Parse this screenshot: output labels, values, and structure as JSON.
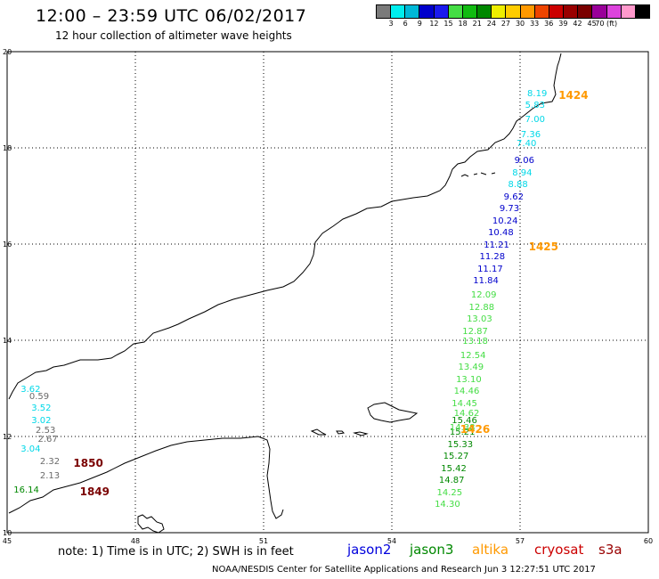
{
  "header": {
    "title": "12:00 – 23:59 UTC 06/02/2017",
    "subtitle": "12 hour collection of altimeter wave heights"
  },
  "color_scale": {
    "colors": [
      "#7a7a7a",
      "#00eeee",
      "#00b8d8",
      "#0000cc",
      "#1a1aee",
      "#44dd44",
      "#11bb11",
      "#008800",
      "#eeee00",
      "#ffcc00",
      "#ff9900",
      "#ee4400",
      "#cc0000",
      "#990000",
      "#7a0000",
      "#990099",
      "#dd44dd",
      "#ff99cc",
      "#000000"
    ],
    "labels": [
      "3",
      "6",
      "9",
      "12",
      "15",
      "18",
      "21",
      "24",
      "27",
      "30",
      "33",
      "36",
      "39",
      "42",
      "45",
      "70 (ft)"
    ]
  },
  "axes": {
    "lat_labels": [
      "20",
      "18",
      "16",
      "14",
      "12",
      "10"
    ],
    "lon_labels": [
      "45",
      "48",
      "51",
      "54",
      "57",
      "60"
    ]
  },
  "measurements": {
    "altika": [
      {
        "v": "3.62",
        "lon": 45.55,
        "lat": 12.95
      },
      {
        "v": "3.52",
        "lon": 45.8,
        "lat": 12.55
      },
      {
        "v": "3.02",
        "lon": 45.8,
        "lat": 12.3
      },
      {
        "v": "3.04",
        "lon": 45.55,
        "lat": 11.7
      },
      {
        "v": "8.19",
        "lon": 57.4,
        "lat": 19.1
      },
      {
        "v": "5.83",
        "lon": 57.35,
        "lat": 18.85
      },
      {
        "v": "7.00",
        "lon": 57.35,
        "lat": 18.55
      },
      {
        "v": "7.36",
        "lon": 57.25,
        "lat": 18.25
      },
      {
        "v": "7.40",
        "lon": 57.15,
        "lat": 18.05
      },
      {
        "v": "8.94",
        "lon": 57.05,
        "lat": 17.45
      },
      {
        "v": "8.88",
        "lon": 56.95,
        "lat": 17.2
      }
    ],
    "jason2": [
      {
        "v": "9.06",
        "lon": 57.1,
        "lat": 17.7
      },
      {
        "v": "9.62",
        "lon": 56.85,
        "lat": 16.95
      },
      {
        "v": "9.73",
        "lon": 56.75,
        "lat": 16.7
      },
      {
        "v": "10.24",
        "lon": 56.65,
        "lat": 16.45
      },
      {
        "v": "10.48",
        "lon": 56.55,
        "lat": 16.2
      },
      {
        "v": "11.21",
        "lon": 56.45,
        "lat": 15.95
      },
      {
        "v": "11.28",
        "lon": 56.35,
        "lat": 15.7
      },
      {
        "v": "11.17",
        "lon": 56.3,
        "lat": 15.45
      },
      {
        "v": "11.84",
        "lon": 56.2,
        "lat": 15.2
      }
    ],
    "jason3": [
      {
        "v": "16.14",
        "lon": 45.45,
        "lat": 10.85
      },
      {
        "v": "15.46",
        "lon": 55.7,
        "lat": 12.3
      },
      {
        "v": "15.21",
        "lon": 55.65,
        "lat": 12.05
      },
      {
        "v": "15.33",
        "lon": 55.6,
        "lat": 11.8
      },
      {
        "v": "15.27",
        "lon": 55.5,
        "lat": 11.55
      },
      {
        "v": "15.42",
        "lon": 55.45,
        "lat": 11.3
      },
      {
        "v": "14.87",
        "lon": 55.4,
        "lat": 11.05
      }
    ],
    "jason3_light": [
      {
        "v": "12.09",
        "lon": 56.15,
        "lat": 14.9
      },
      {
        "v": "12.88",
        "lon": 56.1,
        "lat": 14.65
      },
      {
        "v": "13.03",
        "lon": 56.05,
        "lat": 14.4
      },
      {
        "v": "12.87",
        "lon": 55.95,
        "lat": 14.15
      },
      {
        "v": "13.18",
        "lon": 55.95,
        "lat": 13.95
      },
      {
        "v": "12.54",
        "lon": 55.9,
        "lat": 13.65
      },
      {
        "v": "13.49",
        "lon": 55.85,
        "lat": 13.4
      },
      {
        "v": "13.10",
        "lon": 55.8,
        "lat": 13.15
      },
      {
        "v": "14.46",
        "lon": 55.75,
        "lat": 12.9
      },
      {
        "v": "14.45",
        "lon": 55.7,
        "lat": 12.65
      },
      {
        "v": "14.62",
        "lon": 55.75,
        "lat": 12.45
      },
      {
        "v": "14.38",
        "lon": 55.65,
        "lat": 12.15
      },
      {
        "v": "14.25",
        "lon": 55.35,
        "lat": 10.8
      },
      {
        "v": "14.30",
        "lon": 55.3,
        "lat": 10.55
      }
    ],
    "gray": [
      {
        "v": "0.59",
        "lon": 45.75,
        "lat": 12.8
      },
      {
        "v": "2.53",
        "lon": 45.9,
        "lat": 12.1
      },
      {
        "v": "2.67",
        "lon": 45.95,
        "lat": 11.9
      },
      {
        "v": "2.32",
        "lon": 46.0,
        "lat": 11.45
      },
      {
        "v": "2.13",
        "lon": 46.0,
        "lat": 11.15
      }
    ]
  },
  "times": {
    "orange": [
      {
        "v": "1424",
        "lon": 57.9,
        "lat": 19.1
      },
      {
        "v": "1425",
        "lon": 57.2,
        "lat": 15.95
      },
      {
        "v": "1426",
        "lon": 55.6,
        "lat": 12.15
      }
    ],
    "darkred": [
      {
        "v": "1850",
        "lon": 46.55,
        "lat": 11.45
      },
      {
        "v": "1849",
        "lon": 46.7,
        "lat": 10.85
      }
    ]
  },
  "note": "note: 1) Time is in UTC; 2) SWH is in feet",
  "satellites": [
    {
      "name": "jason2",
      "color": "#0000dd"
    },
    {
      "name": "jason3",
      "color": "#008800"
    },
    {
      "name": "altika",
      "color": "#ff9900"
    },
    {
      "name": "cryosat",
      "color": "#cc0000"
    },
    {
      "name": "s3a",
      "color": "#990000"
    }
  ],
  "footer": "NOAA/NESDIS Center for Satellite Applications and Research     Jun  3 12:27:51 UTC 2017",
  "colors": {
    "altika": "#00d8e8",
    "jason2": "#0000cc",
    "jason3": "#008800",
    "jason3_light": "#44dd44",
    "gray": "#6a6a6a",
    "time_orange": "#ff9900",
    "time_darkred": "#7a0000"
  }
}
